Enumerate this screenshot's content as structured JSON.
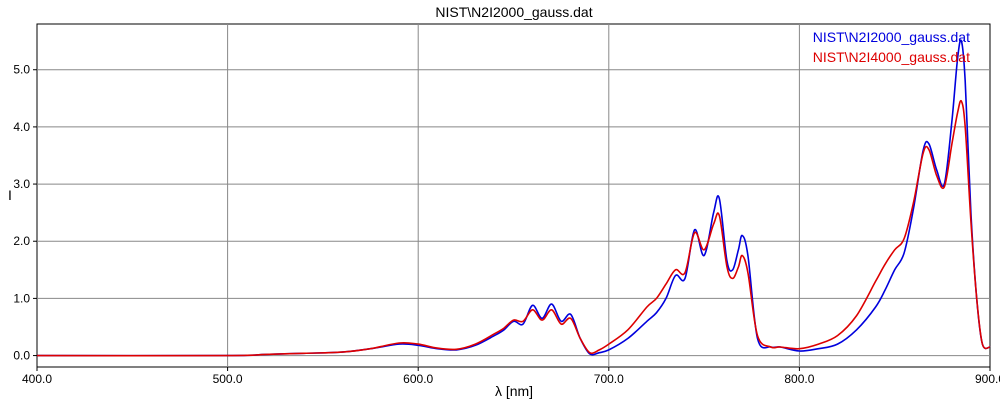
{
  "chart_data": {
    "type": "line",
    "title": "NIST\\N2I2000_gauss.dat",
    "xlabel": "λ [nm]",
    "ylabel": "I",
    "xlim": [
      400.0,
      900.0
    ],
    "ylim": [
      -0.2,
      5.8
    ],
    "x_ticks": [
      400.0,
      500.0,
      600.0,
      700.0,
      800.0,
      900.0
    ],
    "x_tick_labels": [
      "400.0",
      "500.0",
      "600.0",
      "700.0",
      "800.0",
      "900.0"
    ],
    "y_ticks": [
      0.0,
      1.0,
      2.0,
      3.0,
      4.0,
      5.0
    ],
    "y_tick_labels": [
      "0.0",
      "1.0",
      "2.0",
      "3.0",
      "4.0",
      "5.0"
    ],
    "grid": true,
    "legend_position": "top-right",
    "series": [
      {
        "name": "NIST\\N2I2000_gauss.dat",
        "color": "#0000dd",
        "x": [
          400,
          500,
          520,
          540,
          560,
          575,
          590,
          600,
          610,
          620,
          630,
          640,
          645,
          650,
          655,
          660,
          665,
          670,
          675,
          680,
          685,
          690,
          695,
          700,
          710,
          720,
          725,
          730,
          735,
          740,
          745,
          750,
          755,
          758,
          762,
          765,
          768,
          770,
          773,
          778,
          785,
          790,
          800,
          810,
          820,
          830,
          840,
          845,
          850,
          855,
          860,
          865,
          868,
          872,
          876,
          880,
          883,
          885,
          887,
          890,
          893,
          896,
          900
        ],
        "y": [
          0.0,
          0.0,
          0.02,
          0.04,
          0.06,
          0.12,
          0.2,
          0.18,
          0.12,
          0.1,
          0.18,
          0.35,
          0.45,
          0.6,
          0.55,
          0.88,
          0.65,
          0.9,
          0.6,
          0.72,
          0.3,
          0.03,
          0.05,
          0.1,
          0.3,
          0.6,
          0.75,
          1.0,
          1.4,
          1.35,
          2.2,
          1.75,
          2.5,
          2.75,
          1.65,
          1.5,
          1.85,
          2.1,
          1.75,
          0.3,
          0.15,
          0.15,
          0.08,
          0.12,
          0.2,
          0.45,
          0.85,
          1.15,
          1.5,
          1.8,
          2.6,
          3.6,
          3.7,
          3.25,
          3.0,
          4.1,
          5.2,
          5.5,
          4.8,
          2.5,
          1.0,
          0.2,
          0.15
        ]
      },
      {
        "name": "NIST\\N2I4000_gauss.dat",
        "color": "#dd0000",
        "x": [
          400,
          500,
          520,
          540,
          560,
          575,
          590,
          600,
          610,
          620,
          630,
          640,
          645,
          650,
          655,
          660,
          665,
          670,
          675,
          680,
          685,
          690,
          695,
          700,
          710,
          720,
          725,
          730,
          735,
          740,
          745,
          750,
          755,
          758,
          762,
          765,
          768,
          770,
          773,
          778,
          785,
          790,
          800,
          810,
          820,
          830,
          840,
          845,
          850,
          855,
          860,
          865,
          868,
          872,
          876,
          880,
          883,
          885,
          887,
          890,
          893,
          896,
          900
        ],
        "y": [
          0.0,
          0.0,
          0.02,
          0.04,
          0.06,
          0.12,
          0.22,
          0.2,
          0.13,
          0.11,
          0.2,
          0.38,
          0.48,
          0.62,
          0.6,
          0.8,
          0.62,
          0.8,
          0.55,
          0.65,
          0.3,
          0.05,
          0.1,
          0.2,
          0.45,
          0.85,
          1.0,
          1.25,
          1.5,
          1.45,
          2.15,
          1.85,
          2.3,
          2.45,
          1.55,
          1.35,
          1.55,
          1.75,
          1.45,
          0.35,
          0.15,
          0.15,
          0.12,
          0.2,
          0.35,
          0.7,
          1.3,
          1.6,
          1.85,
          2.05,
          2.7,
          3.55,
          3.6,
          3.15,
          2.95,
          3.7,
          4.25,
          4.45,
          4.0,
          2.35,
          1.0,
          0.2,
          0.15
        ]
      }
    ]
  }
}
